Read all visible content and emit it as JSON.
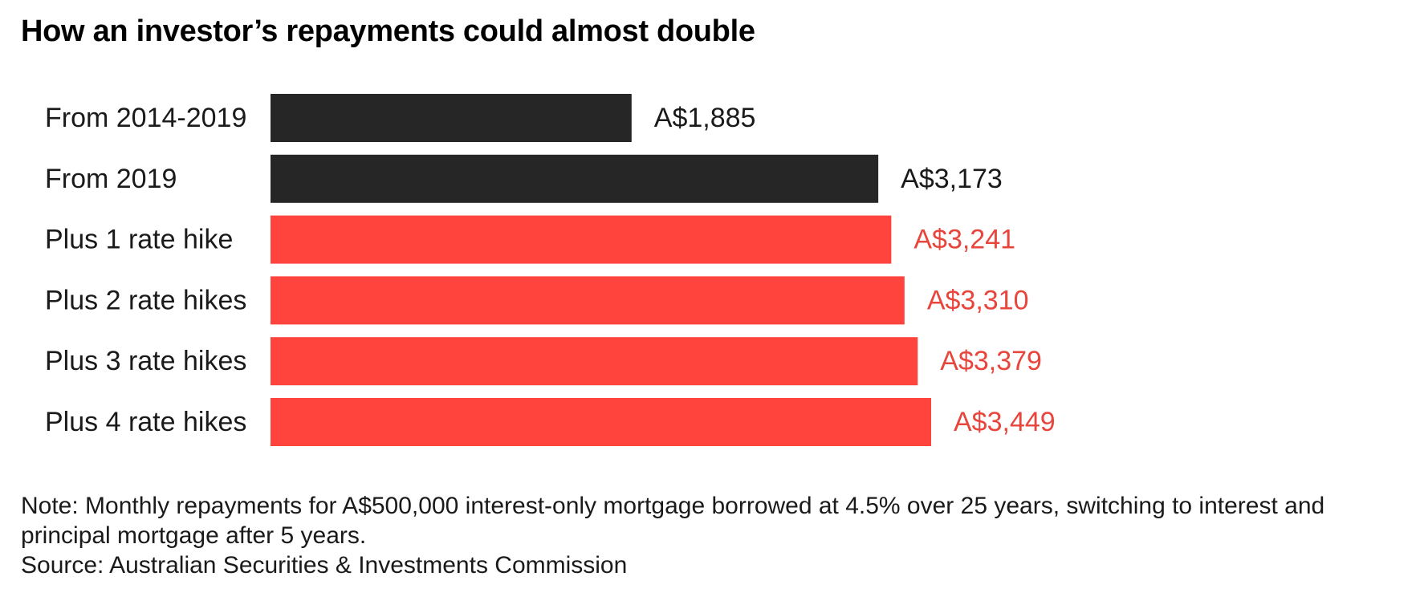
{
  "chart_data": {
    "type": "bar",
    "orientation": "horizontal",
    "title": "How an investor’s repayments could almost double",
    "categories": [
      "From 2014-2019",
      "From 2019",
      "Plus 1 rate hike",
      "Plus 2 rate hikes",
      "Plus 3 rate hikes",
      "Plus 4 rate hikes"
    ],
    "values": [
      1885,
      3173,
      3241,
      3310,
      3379,
      3449
    ],
    "value_labels": [
      "A$1,885",
      "A$3,173",
      "A$3,241",
      "A$3,310",
      "A$3,379",
      "A$3,449"
    ],
    "bar_colors": [
      "#262626",
      "#262626",
      "#ff433d",
      "#ff433d",
      "#ff433d",
      "#ff433d"
    ],
    "value_label_colors": [
      "#1a1a1a",
      "#1a1a1a",
      "#e8453c",
      "#e8453c",
      "#e8453c",
      "#e8453c"
    ],
    "xlabel": "",
    "ylabel": "",
    "xlim": [
      0,
      3449
    ],
    "grid": false,
    "legend": "none"
  },
  "footer": {
    "note": "Note: Monthly repayments for A$500,000 interest-only mortgage borrowed at 4.5% over 25 years, switching to interest and principal mortgage after 5 years.",
    "source": "Source: Australian Securities & Investments Commission"
  }
}
